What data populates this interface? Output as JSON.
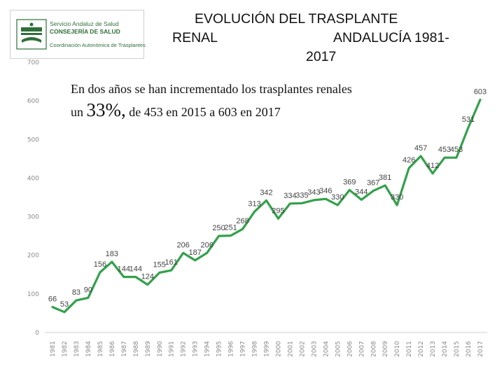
{
  "header": {
    "logo": {
      "line1": "Servicio Andaluz de Salud",
      "line2": "CONSEJERÍA DE SALUD",
      "line3": "Coordinación Autonómica de Trasplantes",
      "color": "#2f6f3a"
    },
    "title_line1": "EVOLUCIÓN DEL TRASPLANTE",
    "title_line2_left": "RENAL",
    "title_line2_right": "ANDALUCÍA 1981-",
    "title_line3": "2017"
  },
  "note": {
    "part1": "En dos años se han incrementado los trasplantes renales un ",
    "highlight": "33%,",
    "part2": " de 453 en 2015 a 603 en 2017"
  },
  "chart_data": {
    "type": "line",
    "x": [
      "1981",
      "1982",
      "1983",
      "1984",
      "1985",
      "1986",
      "1987",
      "1988",
      "1989",
      "1990",
      "1991",
      "1992",
      "1993",
      "1994",
      "1995",
      "1996",
      "1997",
      "1998",
      "1999",
      "2000",
      "2001",
      "2002",
      "2003",
      "2004",
      "2005",
      "2006",
      "2007",
      "2008",
      "2009",
      "2010",
      "2011",
      "2012",
      "2013",
      "2014",
      "2015",
      "2016",
      "2017"
    ],
    "series": [
      {
        "values": [
          66,
          53,
          83,
          90,
          156,
          183,
          144,
          144,
          124,
          155,
          161,
          206,
          187,
          206,
          250,
          251,
          268,
          313,
          342,
          295,
          334,
          335,
          343,
          346,
          330,
          369,
          344,
          367,
          381,
          330,
          426,
          457,
          412,
          453,
          453,
          531,
          603
        ],
        "labels": [
          "66",
          "53",
          "83",
          "90",
          "156",
          "183",
          "144",
          "144",
          "124",
          "155",
          "161",
          "206",
          "187",
          "206",
          "250",
          "251",
          "268",
          "313",
          "342",
          "295",
          "334",
          "335",
          "343",
          "346",
          "330",
          "369",
          "344",
          "367",
          "381",
          "330",
          "426",
          "457",
          "412",
          "453",
          "453",
          "531",
          "603"
        ],
        "color": "#33a14b"
      }
    ],
    "yticks": [
      "0",
      "100",
      "200",
      "300",
      "400",
      "500",
      "600",
      "700"
    ],
    "ylim": [
      0,
      700
    ],
    "grid": false,
    "legend": "none"
  }
}
